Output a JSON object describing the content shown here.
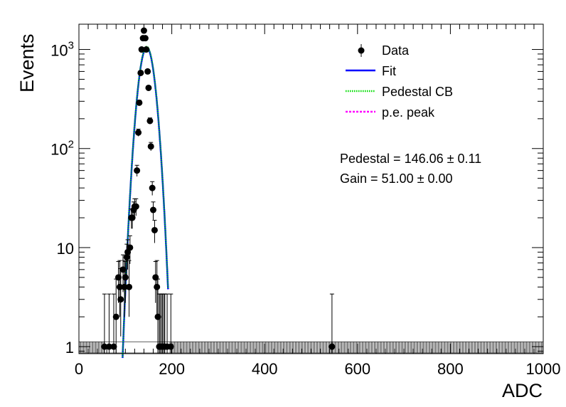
{
  "chart_data": {
    "type": "scatter",
    "title": "",
    "xlabel": "ADC",
    "ylabel": "Events",
    "x_scale": "linear",
    "y_scale": "log",
    "xlim": [
      0,
      1000
    ],
    "ylim": [
      0.85,
      1800
    ],
    "x_ticks": [
      0,
      200,
      400,
      600,
      800,
      1000
    ],
    "x_tick_labels": [
      "0",
      "200",
      "400",
      "600",
      "800",
      "1000"
    ],
    "y_ticks": [
      1,
      10,
      100,
      1000
    ],
    "y_tick_labels": [
      "1",
      "10",
      "10^2",
      "10^3"
    ],
    "grid": false,
    "legend_position": "top-right",
    "legend": [
      {
        "label": "Data",
        "style": "marker",
        "color": "#000000"
      },
      {
        "label": "Fit",
        "style": "solid",
        "color": "#0000ff"
      },
      {
        "label": "Pedestal CB",
        "style": "dotted",
        "color": "#00dd00"
      },
      {
        "label": "p.e. peak",
        "style": "dotted",
        "color": "#ff00ff"
      }
    ],
    "annotations": [
      "Pedestal = 146.06 ± 0.11",
      "Gain = 51.00 ± 0.00"
    ],
    "series": [
      {
        "name": "Data",
        "x": [
          55,
          65,
          75,
          80,
          85,
          88,
          90,
          95,
          98,
          100,
          103,
          105,
          108,
          110,
          113,
          115,
          118,
          120,
          123,
          125,
          128,
          130,
          133,
          135,
          138,
          140,
          143,
          145,
          148,
          150,
          153,
          155,
          158,
          160,
          163,
          165,
          168,
          170,
          173,
          175,
          178,
          180,
          183,
          185,
          190,
          198,
          545
        ],
        "y": [
          1,
          1,
          1,
          2,
          5,
          4,
          3,
          6,
          4,
          5,
          8,
          9,
          4,
          10,
          20,
          20,
          24,
          26,
          26,
          60,
          145,
          290,
          580,
          1000,
          1300,
          1550,
          1300,
          1000,
          600,
          410,
          190,
          105,
          40,
          24,
          15,
          5,
          4,
          2,
          1,
          1,
          1,
          1,
          1,
          1,
          1,
          1,
          1
        ],
        "color": "#000000"
      }
    ]
  }
}
